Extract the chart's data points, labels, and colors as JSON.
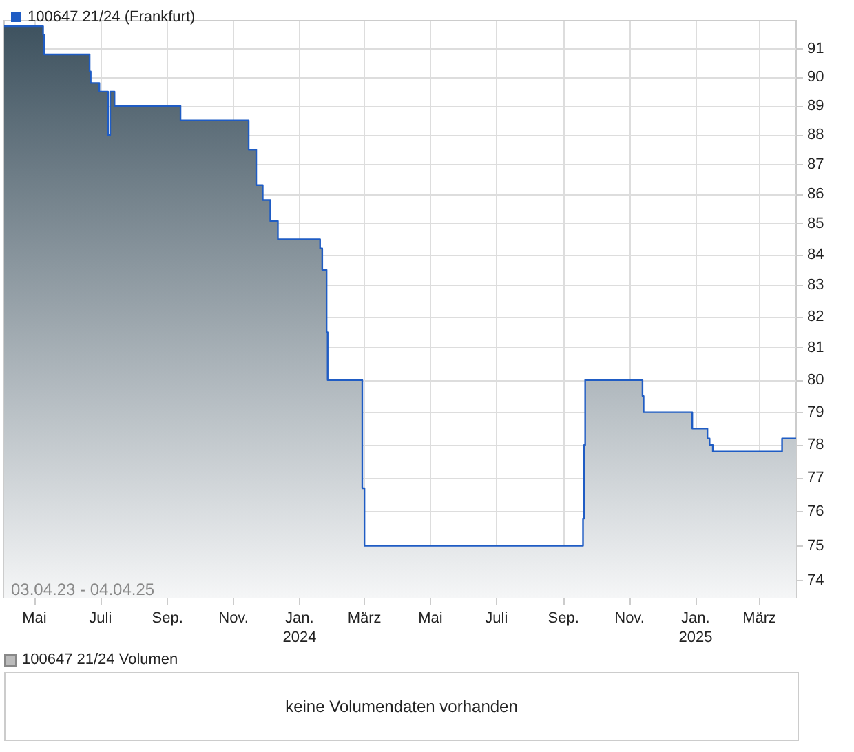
{
  "chart_data": [
    {
      "type": "area",
      "x": [
        "2023-04-03",
        "2023-05-09",
        "2023-05-09",
        "2023-05-10",
        "2023-05-10",
        "2023-06-21",
        "2023-06-21",
        "2023-06-22",
        "2023-06-22",
        "2023-06-30",
        "2023-06-30",
        "2023-07-08",
        "2023-07-08",
        "2023-07-10",
        "2023-07-10",
        "2023-07-14",
        "2023-07-14",
        "2023-09-13",
        "2023-09-13",
        "2023-11-15",
        "2023-11-15",
        "2023-11-22",
        "2023-11-22",
        "2023-11-28",
        "2023-11-28",
        "2023-12-05",
        "2023-12-05",
        "2023-12-12",
        "2023-12-12",
        "2024-01-20",
        "2024-01-20",
        "2024-01-22",
        "2024-01-22",
        "2024-01-26",
        "2024-01-26",
        "2024-01-27",
        "2024-01-27",
        "2024-02-28",
        "2024-02-28",
        "2024-03-01",
        "2024-03-01",
        "2024-09-19",
        "2024-09-19",
        "2024-09-20",
        "2024-09-20",
        "2024-09-21",
        "2024-09-21",
        "2024-11-13",
        "2024-11-13",
        "2024-11-14",
        "2024-11-14",
        "2024-12-29",
        "2024-12-29",
        "2025-01-12",
        "2025-01-12",
        "2025-01-14",
        "2025-01-14",
        "2025-01-17",
        "2025-01-17",
        "2025-03-22",
        "2025-03-22",
        "2025-04-04"
      ],
      "series": [
        {
          "name": "100647 21/24 (Frankfurt)",
          "color": "#1f5cc4",
          "values": [
            91.8,
            91.8,
            91.5,
            91.5,
            90.8,
            90.8,
            90.2,
            90.2,
            89.8,
            89.8,
            89.5,
            89.5,
            88.0,
            88.0,
            89.5,
            89.5,
            89.0,
            89.0,
            88.5,
            88.5,
            87.5,
            87.5,
            86.3,
            86.3,
            85.8,
            85.8,
            85.1,
            85.1,
            84.5,
            84.5,
            84.2,
            84.2,
            83.5,
            83.5,
            81.5,
            81.5,
            80.0,
            80.0,
            76.7,
            76.7,
            75.0,
            75.0,
            75.8,
            75.8,
            78.0,
            78.0,
            80.0,
            80.0,
            79.5,
            79.5,
            79.0,
            79.0,
            78.5,
            78.5,
            78.2,
            78.2,
            78.0,
            78.0,
            77.8,
            77.8,
            78.2,
            78.2
          ]
        }
      ],
      "log": true,
      "ylim": [
        73.5,
        92
      ],
      "yticks": [
        74,
        75,
        76,
        77,
        78,
        79,
        80,
        81,
        82,
        83,
        84,
        85,
        86,
        87,
        88,
        89,
        90,
        91
      ],
      "xlim": [
        "2023-04-03",
        "2025-04-04"
      ],
      "xticks": [
        {
          "value": "2023-05-01",
          "label": "Mai"
        },
        {
          "value": "2023-07-01",
          "label": "Juli"
        },
        {
          "value": "2023-09-01",
          "label": "Sep."
        },
        {
          "value": "2023-11-01",
          "label": "Nov."
        },
        {
          "value": "2024-01-01",
          "label": "Jan.\n2024"
        },
        {
          "value": "2024-03-01",
          "label": "März"
        },
        {
          "value": "2024-05-01",
          "label": "Mai"
        },
        {
          "value": "2024-07-01",
          "label": "Juli"
        },
        {
          "value": "2024-09-01",
          "label": "Sep."
        },
        {
          "value": "2024-11-01",
          "label": "Nov."
        },
        {
          "value": "2025-01-01",
          "label": "Jan.\n2025"
        },
        {
          "value": "2025-03-01",
          "label": "März"
        }
      ],
      "grid": true,
      "legend": "top left",
      "annotations": [
        "03.04.23 - 04.04.25"
      ]
    },
    {
      "type": "other",
      "title": "100647 21/24 Volumen",
      "annotations": [
        "keine Volumendaten vorhanden"
      ]
    }
  ]
}
